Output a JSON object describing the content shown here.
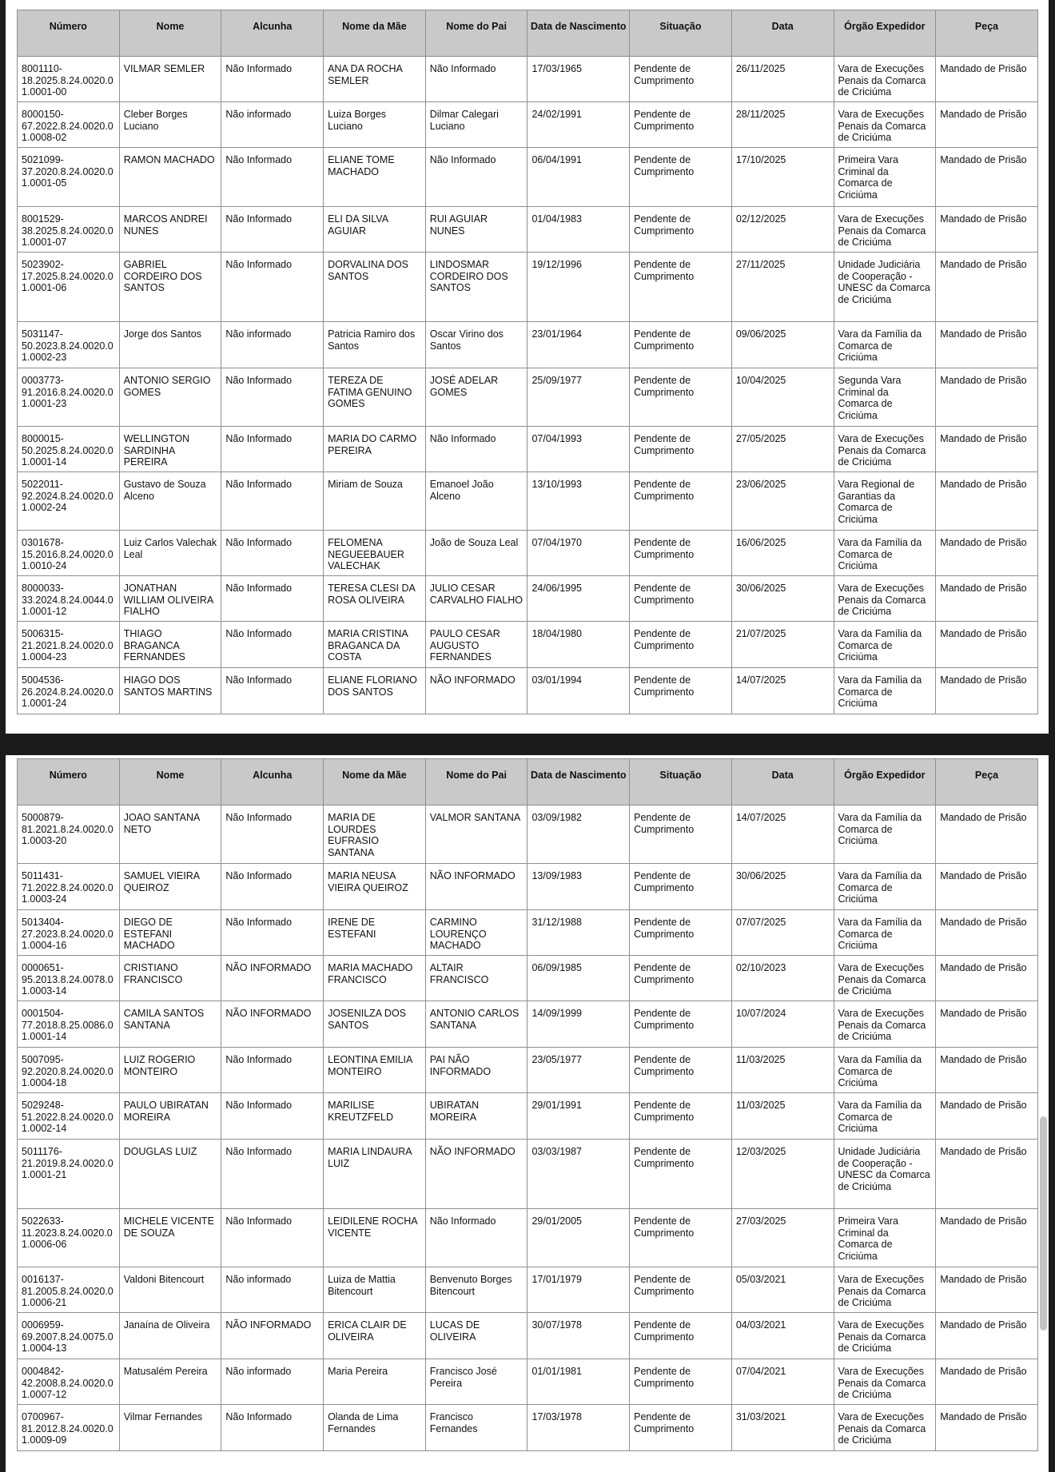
{
  "columns": [
    "Número",
    "Nome",
    "Alcunha",
    "Nome da Mãe",
    "Nome do Pai",
    "Data de Nascimento",
    "Situação",
    "Data",
    "Órgão Expedidor",
    "Peça"
  ],
  "tables": [
    {
      "rows": [
        [
          "8001110-18.2025.8.24.0020.01.0001-00",
          "VILMAR SEMLER",
          "Não Informado",
          "ANA DA ROCHA SEMLER",
          "Não Informado",
          "17/03/1965",
          "Pendente de Cumprimento",
          "26/11/2025",
          "Vara de Execuções Penais da Comarca de Criciúma",
          "Mandado de Prisão"
        ],
        [
          "8000150-67.2022.8.24.0020.01.0008-02",
          "Cleber Borges Luciano",
          "Não informado",
          "Luiza Borges Luciano",
          "Dilmar Calegari Luciano",
          "24/02/1991",
          "Pendente de Cumprimento",
          "28/11/2025",
          "Vara de Execuções Penais da Comarca de Criciúma",
          "Mandado de Prisão"
        ],
        [
          "5021099-37.2020.8.24.0020.01.0001-05",
          "RAMON MACHADO",
          "Não Informado",
          "ELIANE TOME MACHADO",
          "Não Informado",
          "06/04/1991",
          "Pendente de Cumprimento",
          "17/10/2025",
          "Primeira Vara Criminal da Comarca de Criciúma",
          "Mandado de Prisão"
        ],
        [
          "8001529-38.2025.8.24.0020.01.0001-07",
          "MARCOS ANDREI NUNES",
          "Não Informado",
          "ELI DA SILVA AGUIAR",
          "RUI AGUIAR NUNES",
          "01/04/1983",
          "Pendente de Cumprimento",
          "02/12/2025",
          "Vara de Execuções Penais da Comarca de Criciúma",
          "Mandado de Prisão"
        ],
        [
          "5023902-17.2025.8.24.0020.01.0001-06",
          "GABRIEL CORDEIRO DOS SANTOS",
          "Não Informado",
          "DORVALINA DOS SANTOS",
          "LINDOSMAR CORDEIRO DOS SANTOS",
          "19/12/1996",
          "Pendente de Cumprimento",
          "27/11/2025",
          "Unidade Judiciária de Cooperação - UNESC da Comarca de Criciúma",
          "Mandado de Prisão"
        ],
        [
          "5031147-50.2023.8.24.0020.01.0002-23",
          "Jorge dos Santos",
          "Não informado",
          "Patricia Ramiro dos Santos",
          "Oscar Virino dos Santos",
          "23/01/1964",
          "Pendente de Cumprimento",
          "09/06/2025",
          "Vara da Família da Comarca de Criciúma",
          "Mandado de Prisão"
        ],
        [
          "0003773-91.2016.8.24.0020.01.0001-23",
          "ANTONIO SERGIO GOMES",
          "Não Informado",
          "TEREZA DE FATIMA GENUINO GOMES",
          "JOSÉ ADELAR GOMES",
          "25/09/1977",
          "Pendente de Cumprimento",
          "10/04/2025",
          "Segunda Vara Criminal da Comarca de Criciúma",
          "Mandado de Prisão"
        ],
        [
          "8000015-50.2025.8.24.0020.01.0001-14",
          "WELLINGTON SARDINHA PEREIRA",
          "Não Informado",
          "MARIA DO CARMO PEREIRA",
          "Não Informado",
          "07/04/1993",
          "Pendente de Cumprimento",
          "27/05/2025",
          "Vara de Execuções Penais da Comarca de Criciúma",
          "Mandado de Prisão"
        ],
        [
          "5022011-92.2024.8.24.0020.01.0002-24",
          "Gustavo de Souza Alceno",
          "Não Informado",
          "Miriam de Souza",
          "Emanoel João Alceno",
          "13/10/1993",
          "Pendente de Cumprimento",
          "23/06/2025",
          "Vara Regional de Garantias da Comarca de Criciúma",
          "Mandado de Prisão"
        ],
        [
          "0301678-15.2016.8.24.0020.01.0010-24",
          "Luiz Carlos Valechak Leal",
          "Não Informado",
          "FELOMENA NEGUEEBAUER VALECHAK",
          "João de Souza Leal",
          "07/04/1970",
          "Pendente de Cumprimento",
          "16/06/2025",
          "Vara da Família da Comarca de Criciúma",
          "Mandado de Prisão"
        ],
        [
          "8000033-33.2024.8.24.0044.01.0001-12",
          "JONATHAN WILLIAM OLIVEIRA FIALHO",
          "Não Informado",
          "TERESA CLESI DA ROSA OLIVEIRA",
          "JULIO CESAR CARVALHO FIALHO",
          "24/06/1995",
          "Pendente de Cumprimento",
          "30/06/2025",
          "Vara de Execuções Penais da Comarca de Criciúma",
          "Mandado de Prisão"
        ],
        [
          "5006315-21.2021.8.24.0020.01.0004-23",
          "THIAGO BRAGANCA FERNANDES",
          "Não Informado",
          "MARIA CRISTINA BRAGANCA DA COSTA",
          "PAULO CESAR AUGUSTO FERNANDES",
          "18/04/1980",
          "Pendente de Cumprimento",
          "21/07/2025",
          "Vara da Família da Comarca de Criciúma",
          "Mandado de Prisão"
        ],
        [
          "5004536-26.2024.8.24.0020.01.0001-24",
          "HIAGO DOS SANTOS MARTINS",
          "Não Informado",
          "ELIANE FLORIANO DOS SANTOS",
          "NÃO INFORMADO",
          "03/01/1994",
          "Pendente de Cumprimento",
          "14/07/2025",
          "Vara da Família da Comarca de Criciúma",
          "Mandado de Prisão"
        ]
      ]
    },
    {
      "rows": [
        [
          "5000879-81.2021.8.24.0020.01.0003-20",
          "JOAO SANTANA NETO",
          "Não Informado",
          "MARIA DE LOURDES EUFRASIO SANTANA",
          "VALMOR SANTANA",
          "03/09/1982",
          "Pendente de Cumprimento",
          "14/07/2025",
          "Vara da Família da Comarca de Criciúma",
          "Mandado de Prisão"
        ],
        [
          "5011431-71.2022.8.24.0020.01.0003-24",
          "SAMUEL VIEIRA QUEIROZ",
          "Não Informado",
          "MARIA NEUSA VIEIRA QUEIROZ",
          "NÃO INFORMADO",
          "13/09/1983",
          "Pendente de Cumprimento",
          "30/06/2025",
          "Vara da Família da Comarca de Criciúma",
          "Mandado de Prisão"
        ],
        [
          "5013404-27.2023.8.24.0020.01.0004-16",
          "DIEGO DE ESTEFANI MACHADO",
          "Não Informado",
          "IRENE DE ESTEFANI",
          "CARMINO LOURENÇO MACHADO",
          "31/12/1988",
          "Pendente de Cumprimento",
          "07/07/2025",
          "Vara da Família da Comarca de Criciúma",
          "Mandado de Prisão"
        ],
        [
          "0000651-95.2013.8.24.0078.01.0003-14",
          "CRISTIANO FRANCISCO",
          "NÃO INFORMADO",
          "MARIA MACHADO FRANCISCO",
          "ALTAIR FRANCISCO",
          "06/09/1985",
          "Pendente de Cumprimento",
          "02/10/2023",
          "Vara de Execuções Penais da Comarca de Criciúma",
          "Mandado de Prisão"
        ],
        [
          "0001504-77.2018.8.25.0086.01.0001-14",
          "CAMILA SANTOS SANTANA",
          "NÃO INFORMADO",
          "JOSENILZA DOS SANTOS",
          "ANTONIO CARLOS SANTANA",
          "14/09/1999",
          "Pendente de Cumprimento",
          "10/07/2024",
          "Vara de Execuções Penais da Comarca de Criciúma",
          "Mandado de Prisão"
        ],
        [
          "5007095-92.2020.8.24.0020.01.0004-18",
          "LUIZ ROGERIO MONTEIRO",
          "Não Informado",
          "LEONTINA EMILIA MONTEIRO",
          "PAI NÃO INFORMADO",
          "23/05/1977",
          "Pendente de Cumprimento",
          "11/03/2025",
          "Vara da Família da Comarca de Criciúma",
          "Mandado de Prisão"
        ],
        [
          "5029248-51.2022.8.24.0020.01.0002-14",
          "PAULO UBIRATAN MOREIRA",
          "Não Informado",
          "MARILISE KREUTZFELD",
          "UBIRATAN MOREIRA",
          "29/01/1991",
          "Pendente de Cumprimento",
          "11/03/2025",
          "Vara da Família da Comarca de Criciúma",
          "Mandado de Prisão"
        ],
        [
          "5011176-21.2019.8.24.0020.01.0001-21",
          "DOUGLAS LUIZ",
          "Não Informado",
          "MARIA LINDAURA LUIZ",
          "NÃO INFORMADO",
          "03/03/1987",
          "Pendente de Cumprimento",
          "12/03/2025",
          "Unidade Judiciária de Cooperação - UNESC da Comarca de Criciúma",
          "Mandado de Prisão"
        ],
        [
          "5022633-11.2023.8.24.0020.01.0006-06",
          "MICHELE VICENTE DE SOUZA",
          "Não Informado",
          "LEIDILENE ROCHA VICENTE",
          "Não Informado",
          "29/01/2005",
          "Pendente de Cumprimento",
          "27/03/2025",
          "Primeira Vara Criminal da Comarca de Criciúma",
          "Mandado de Prisão"
        ],
        [
          "0016137-81.2005.8.24.0020.01.0006-21",
          "Valdoni Bitencourt",
          "Não informado",
          "Luiza de Mattia Bitencourt",
          "Benvenuto Borges Bitencourt",
          "17/01/1979",
          "Pendente de Cumprimento",
          "05/03/2021",
          "Vara de Execuções Penais da Comarca de Criciúma",
          "Mandado de Prisão"
        ],
        [
          "0006959-69.2007.8.24.0075.01.0004-13",
          "Janaína de Oliveira",
          "NÃO INFORMADO",
          "ERICA CLAIR DE OLIVEIRA",
          "LUCAS DE OLIVEIRA",
          "30/07/1978",
          "Pendente de Cumprimento",
          "04/03/2021",
          "Vara de Execuções Penais da Comarca de Criciúma",
          "Mandado de Prisão"
        ],
        [
          "0004842-42.2008.8.24.0020.01.0007-12",
          "Matusalém Pereira",
          "Não informado",
          "Maria Pereira",
          "Francisco José Pereira",
          "01/01/1981",
          "Pendente de Cumprimento",
          "07/04/2021",
          "Vara de Execuções Penais da Comarca de Criciúma",
          "Mandado de Prisão"
        ],
        [
          "0700967-81.2012.8.24.0020.01.0009-09",
          "Vilmar Fernandes",
          "Não Informado",
          "Olanda de Lima Fernandes",
          "Francisco Fernandes",
          "17/03/1978",
          "Pendente de Cumprimento",
          "31/03/2021",
          "Vara de Execuções Penais da Comarca de Criciúma",
          "Mandado de Prisão"
        ]
      ]
    }
  ]
}
